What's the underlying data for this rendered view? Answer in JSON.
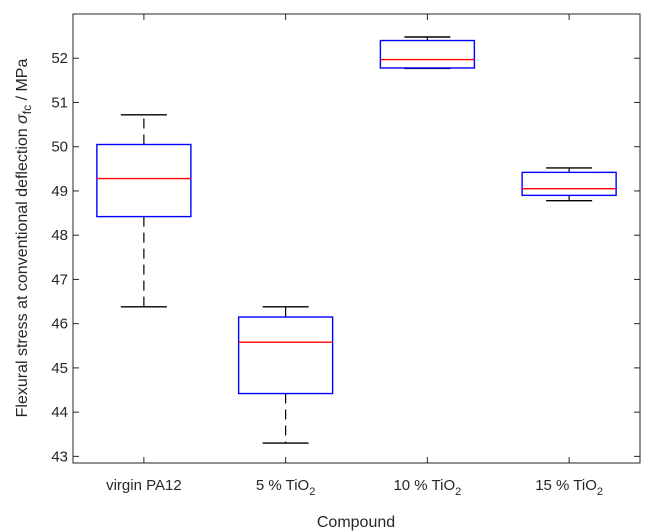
{
  "chart_data": {
    "type": "box",
    "xlabel": "Compound",
    "ylabel": {
      "prefix": "Flexural stress at conventional deflection ",
      "symbol": "σ",
      "subscript": "fc",
      "suffix": " / MPa"
    },
    "ylim": [
      42.85,
      53
    ],
    "yticks": [
      43,
      44,
      45,
      46,
      47,
      48,
      49,
      50,
      51,
      52
    ],
    "grid": false,
    "categories": [
      {
        "base": "virgin PA12",
        "sub": ""
      },
      {
        "base": "5 % TiO",
        "sub": "2"
      },
      {
        "base": "10 % TiO",
        "sub": "2"
      },
      {
        "base": "15 % TiO",
        "sub": "2"
      }
    ],
    "boxes": [
      {
        "whisker_low": 46.38,
        "q1": 48.42,
        "median": 49.28,
        "q3": 50.05,
        "whisker_high": 50.72
      },
      {
        "whisker_low": 43.3,
        "q1": 44.42,
        "median": 45.58,
        "q3": 46.15,
        "whisker_high": 46.38
      },
      {
        "whisker_low": 51.77,
        "q1": 51.78,
        "median": 51.97,
        "q3": 52.4,
        "whisker_high": 52.48
      },
      {
        "whisker_low": 48.78,
        "q1": 48.9,
        "median": 49.05,
        "q3": 49.42,
        "whisker_high": 49.52
      }
    ],
    "colors": {
      "box": "#0000ff",
      "median": "#ff0000",
      "whisker": "#000000",
      "axis": "#262626"
    }
  }
}
